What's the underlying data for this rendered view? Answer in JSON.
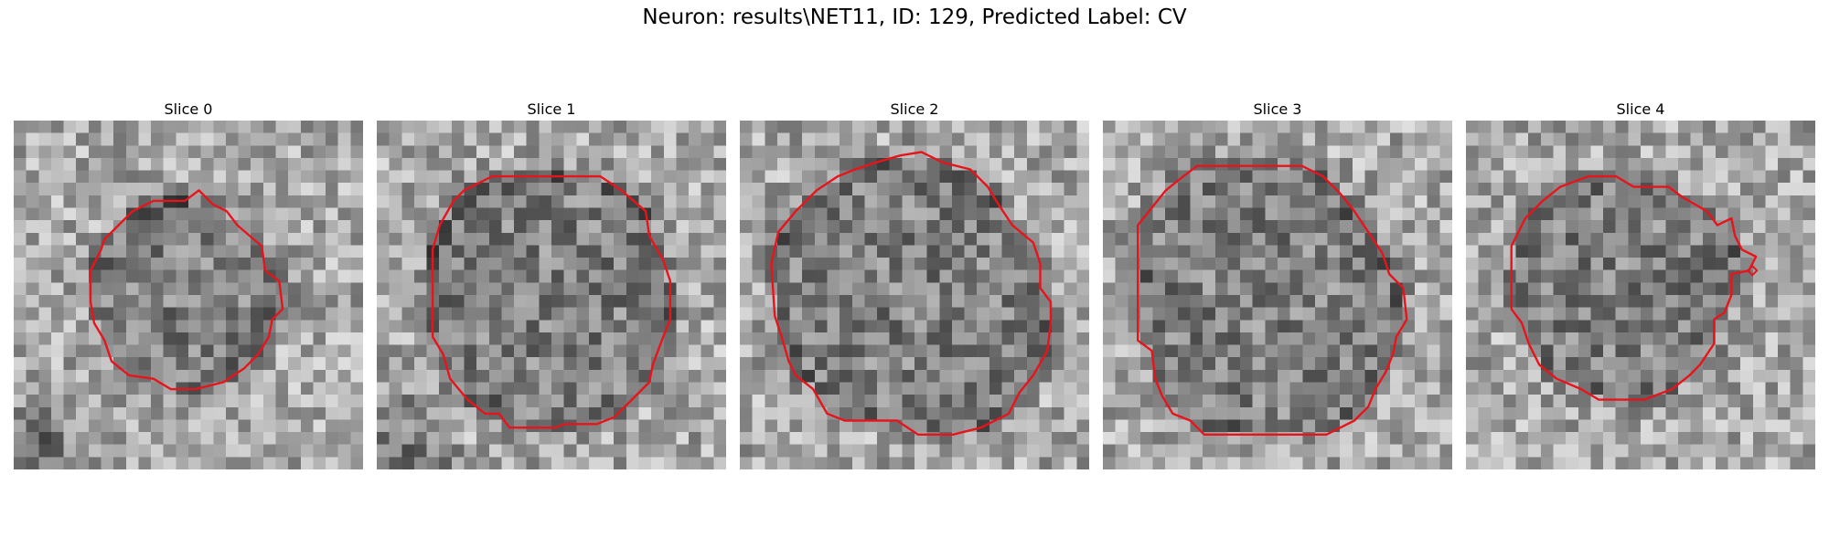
{
  "figure": {
    "title": "Neuron: results\\NET11, ID: 129, Predicted Label: CV",
    "contour_color": "#e8141c"
  },
  "panels": [
    {
      "title": "Slice 0",
      "seed": 11,
      "contour": [
        [
          0.53,
          0.2
        ],
        [
          0.57,
          0.24
        ],
        [
          0.61,
          0.26
        ],
        [
          0.64,
          0.3
        ],
        [
          0.71,
          0.36
        ],
        [
          0.72,
          0.43
        ],
        [
          0.76,
          0.46
        ],
        [
          0.77,
          0.54
        ],
        [
          0.74,
          0.57
        ],
        [
          0.73,
          0.62
        ],
        [
          0.7,
          0.67
        ],
        [
          0.66,
          0.71
        ],
        [
          0.6,
          0.75
        ],
        [
          0.52,
          0.77
        ],
        [
          0.45,
          0.77
        ],
        [
          0.4,
          0.74
        ],
        [
          0.33,
          0.73
        ],
        [
          0.28,
          0.69
        ],
        [
          0.26,
          0.63
        ],
        [
          0.23,
          0.58
        ],
        [
          0.22,
          0.52
        ],
        [
          0.22,
          0.43
        ],
        [
          0.25,
          0.37
        ],
        [
          0.26,
          0.34
        ],
        [
          0.3,
          0.3
        ],
        [
          0.34,
          0.26
        ],
        [
          0.4,
          0.23
        ],
        [
          0.49,
          0.23
        ]
      ],
      "dots": []
    },
    {
      "title": "Slice 1",
      "seed": 23,
      "contour": [
        [
          0.33,
          0.16
        ],
        [
          0.64,
          0.16
        ],
        [
          0.7,
          0.2
        ],
        [
          0.77,
          0.26
        ],
        [
          0.78,
          0.33
        ],
        [
          0.82,
          0.4
        ],
        [
          0.84,
          0.46
        ],
        [
          0.84,
          0.57
        ],
        [
          0.82,
          0.62
        ],
        [
          0.79,
          0.7
        ],
        [
          0.78,
          0.75
        ],
        [
          0.73,
          0.8
        ],
        [
          0.68,
          0.85
        ],
        [
          0.63,
          0.87
        ],
        [
          0.54,
          0.87
        ],
        [
          0.51,
          0.88
        ],
        [
          0.38,
          0.88
        ],
        [
          0.35,
          0.84
        ],
        [
          0.31,
          0.84
        ],
        [
          0.26,
          0.8
        ],
        [
          0.21,
          0.74
        ],
        [
          0.19,
          0.67
        ],
        [
          0.16,
          0.62
        ],
        [
          0.16,
          0.37
        ],
        [
          0.18,
          0.3
        ],
        [
          0.22,
          0.23
        ],
        [
          0.25,
          0.2
        ],
        [
          0.29,
          0.18
        ]
      ],
      "dots": []
    },
    {
      "title": "Slice 2",
      "seed": 37,
      "contour": [
        [
          0.46,
          0.1
        ],
        [
          0.52,
          0.09
        ],
        [
          0.58,
          0.12
        ],
        [
          0.66,
          0.14
        ],
        [
          0.71,
          0.19
        ],
        [
          0.74,
          0.24
        ],
        [
          0.78,
          0.3
        ],
        [
          0.84,
          0.35
        ],
        [
          0.86,
          0.41
        ],
        [
          0.86,
          0.48
        ],
        [
          0.89,
          0.52
        ],
        [
          0.89,
          0.58
        ],
        [
          0.88,
          0.66
        ],
        [
          0.84,
          0.73
        ],
        [
          0.8,
          0.78
        ],
        [
          0.77,
          0.84
        ],
        [
          0.69,
          0.88
        ],
        [
          0.61,
          0.9
        ],
        [
          0.51,
          0.9
        ],
        [
          0.45,
          0.86
        ],
        [
          0.3,
          0.86
        ],
        [
          0.25,
          0.84
        ],
        [
          0.21,
          0.77
        ],
        [
          0.16,
          0.73
        ],
        [
          0.14,
          0.69
        ],
        [
          0.12,
          0.62
        ],
        [
          0.1,
          0.56
        ],
        [
          0.09,
          0.41
        ],
        [
          0.11,
          0.32
        ],
        [
          0.16,
          0.26
        ],
        [
          0.18,
          0.24
        ],
        [
          0.22,
          0.2
        ],
        [
          0.28,
          0.16
        ],
        [
          0.33,
          0.14
        ],
        [
          0.39,
          0.12
        ]
      ],
      "dots": []
    },
    {
      "title": "Slice 3",
      "seed": 51,
      "contour": [
        [
          0.27,
          0.13
        ],
        [
          0.57,
          0.13
        ],
        [
          0.63,
          0.16
        ],
        [
          0.68,
          0.21
        ],
        [
          0.72,
          0.26
        ],
        [
          0.76,
          0.32
        ],
        [
          0.8,
          0.38
        ],
        [
          0.82,
          0.44
        ],
        [
          0.86,
          0.48
        ],
        [
          0.87,
          0.57
        ],
        [
          0.84,
          0.62
        ],
        [
          0.83,
          0.67
        ],
        [
          0.81,
          0.72
        ],
        [
          0.78,
          0.77
        ],
        [
          0.76,
          0.82
        ],
        [
          0.72,
          0.86
        ],
        [
          0.64,
          0.9
        ],
        [
          0.29,
          0.9
        ],
        [
          0.25,
          0.86
        ],
        [
          0.2,
          0.84
        ],
        [
          0.17,
          0.79
        ],
        [
          0.15,
          0.74
        ],
        [
          0.14,
          0.66
        ],
        [
          0.1,
          0.63
        ],
        [
          0.1,
          0.3
        ],
        [
          0.14,
          0.25
        ],
        [
          0.18,
          0.2
        ],
        [
          0.23,
          0.16
        ]
      ],
      "dots": []
    },
    {
      "title": "Slice 4",
      "seed": 67,
      "contour": [
        [
          0.35,
          0.16
        ],
        [
          0.43,
          0.16
        ],
        [
          0.48,
          0.19
        ],
        [
          0.58,
          0.19
        ],
        [
          0.62,
          0.22
        ],
        [
          0.69,
          0.26
        ],
        [
          0.72,
          0.3
        ],
        [
          0.76,
          0.28
        ],
        [
          0.77,
          0.33
        ],
        [
          0.79,
          0.37
        ],
        [
          0.83,
          0.39
        ],
        [
          0.81,
          0.43
        ],
        [
          0.76,
          0.44
        ],
        [
          0.76,
          0.5
        ],
        [
          0.74,
          0.55
        ],
        [
          0.71,
          0.57
        ],
        [
          0.71,
          0.64
        ],
        [
          0.67,
          0.7
        ],
        [
          0.64,
          0.73
        ],
        [
          0.59,
          0.77
        ],
        [
          0.51,
          0.8
        ],
        [
          0.38,
          0.8
        ],
        [
          0.33,
          0.77
        ],
        [
          0.26,
          0.74
        ],
        [
          0.21,
          0.7
        ],
        [
          0.18,
          0.64
        ],
        [
          0.16,
          0.58
        ],
        [
          0.13,
          0.54
        ],
        [
          0.13,
          0.36
        ],
        [
          0.17,
          0.28
        ],
        [
          0.22,
          0.23
        ],
        [
          0.27,
          0.19
        ]
      ],
      "dots": [
        [
          0.82,
          0.43
        ]
      ]
    }
  ]
}
